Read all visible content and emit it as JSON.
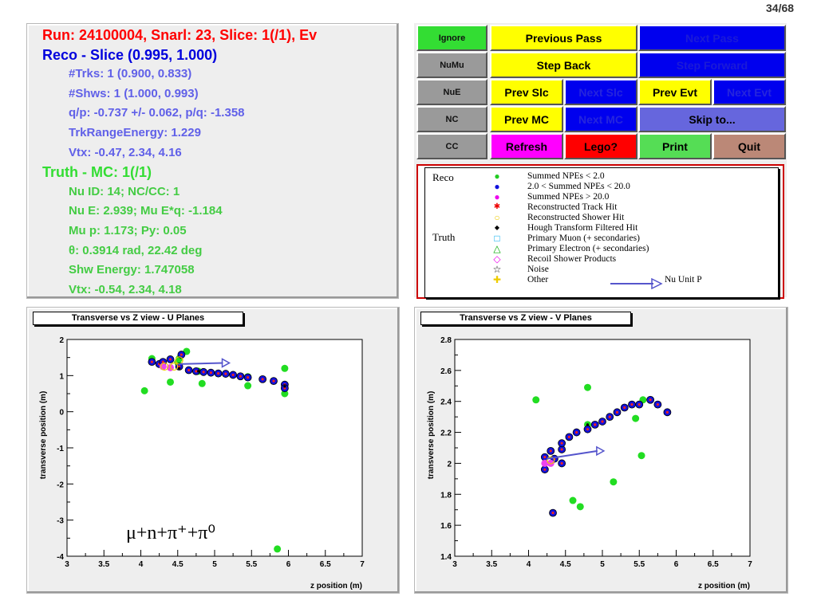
{
  "page": {
    "counter": "34/68"
  },
  "info": {
    "run_line": "Run: 24100004, Snarl: 23, Slice: 1(/1), Ev",
    "reco_title": "Reco - Slice (0.995, 1.000)",
    "reco_lines": [
      "#Trks: 1 (0.900, 0.833)",
      "#Shws: 1 (1.000, 0.993)",
      "q/p: -0.737 +/- 0.062,  p/q: -1.358",
      "TrkRangeEnergy: 1.229",
      "Vtx: -0.47, 2.34, 4.16"
    ],
    "truth_title": "Truth - MC: 1(/1)",
    "truth_lines": [
      "Nu ID: 14;  NC/CC: 1",
      "Nu E: 2.939;  Mu E*q: -1.184",
      "Mu p: 1.173;  Py: 0.05",
      "θ: 0.3914 rad, 22.42 deg",
      "Shw Energy: 1.747058",
      "Vtx: -0.54, 2.34, 4.18"
    ]
  },
  "buttons": {
    "ignore": "Ignore",
    "numu": "NuMu",
    "nue": "NuE",
    "nc": "NC",
    "cc": "CC",
    "previous_pass": "Previous Pass",
    "next_pass": "Next Pass",
    "step_back": "Step Back",
    "step_forward": "Step Forward",
    "prev_slc": "Prev Slc",
    "next_slc": "Next Slc",
    "prev_evt": "Prev Evt",
    "next_evt": "Next Evt",
    "prev_mc": "Prev MC",
    "next_mc": "Next MC",
    "skip_to": "Skip to...",
    "refresh": "Refresh",
    "lego": "Lego?",
    "print": "Print",
    "quit": "Quit"
  },
  "colors": {
    "green": "#33dd33",
    "yellow": "#ffff00",
    "blue": "#0000ee",
    "red": "#ff0000",
    "magenta": "#ff00ff",
    "periwinkle": "#6666dd",
    "brown": "#bb8877",
    "light_green": "#55dd55",
    "gray": "#9a9a9a"
  },
  "legend": {
    "reco_label": "Reco",
    "truth_label": "Truth",
    "entries": [
      {
        "symbol": "green-dot",
        "label": "Summed NPEs < 2.0"
      },
      {
        "symbol": "blue-dot",
        "label": "2.0 < Summed NPEs < 20.0"
      },
      {
        "symbol": "magenta-dot",
        "label": "Summed NPEs > 20.0"
      },
      {
        "symbol": "red-star",
        "label": "Reconstructed Track Hit"
      },
      {
        "symbol": "yellow-circle",
        "label": "Reconstructed Shower Hit"
      },
      {
        "symbol": "black-dot",
        "label": "Hough Transform Filtered Hit"
      },
      {
        "symbol": "cyan-square",
        "label": "Primary Muon (+ secondaries)"
      },
      {
        "symbol": "green-triangle",
        "label": "Primary Electron (+ secondaries)"
      },
      {
        "symbol": "magenta-diamond",
        "label": "Recoil Shower Products"
      },
      {
        "symbol": "star-outline",
        "label": "Noise"
      },
      {
        "symbol": "yellow-cross",
        "label": "Other"
      }
    ],
    "arrow_label": "Nu Unit P"
  },
  "chart_data": [
    {
      "type": "scatter",
      "title": "Transverse vs Z view - U Planes",
      "xlabel": "z position (m)",
      "ylabel": "transverse position (m)",
      "xlim": [
        3,
        7
      ],
      "ylim": [
        -4,
        2
      ],
      "xticks": [
        "3",
        "3.5",
        "4",
        "4.5",
        "5",
        "5.5",
        "6",
        "6.5",
        "7"
      ],
      "yticks": [
        "-4",
        "-3",
        "-2",
        "-1",
        "0",
        "1",
        "2"
      ],
      "annotation": "μ+n+π⁺+π⁰",
      "series": [
        {
          "style": "green-dot",
          "points": [
            [
              4.05,
              0.58
            ],
            [
              4.15,
              1.47
            ],
            [
              4.4,
              0.82
            ],
            [
              4.52,
              1.47
            ],
            [
              4.62,
              1.67
            ],
            [
              4.83,
              0.78
            ],
            [
              5.45,
              0.97
            ],
            [
              5.45,
              0.72
            ],
            [
              5.95,
              1.2
            ],
            [
              5.95,
              0.5
            ],
            [
              5.85,
              -3.8
            ],
            [
              4.5,
              1.37
            ],
            [
              4.78,
              1.12
            ]
          ]
        },
        {
          "style": "blue-dot",
          "points": [
            [
              4.15,
              1.38
            ],
            [
              4.25,
              1.32
            ],
            [
              4.3,
              1.38
            ],
            [
              4.4,
              1.45
            ],
            [
              4.52,
              1.25
            ],
            [
              4.55,
              1.58
            ],
            [
              4.65,
              1.15
            ],
            [
              4.75,
              1.12
            ],
            [
              4.85,
              1.1
            ],
            [
              4.95,
              1.08
            ],
            [
              5.05,
              1.06
            ],
            [
              5.15,
              1.05
            ],
            [
              5.25,
              1.02
            ],
            [
              5.35,
              0.98
            ],
            [
              5.45,
              0.95
            ],
            [
              5.65,
              0.9
            ],
            [
              5.8,
              0.85
            ],
            [
              5.95,
              0.75
            ],
            [
              5.95,
              0.65
            ]
          ]
        },
        {
          "style": "magenta-dot",
          "points": [
            [
              4.3,
              1.25
            ],
            [
              4.4,
              1.22
            ]
          ]
        },
        {
          "style": "yellow-circle",
          "points": [
            [
              4.32,
              1.25
            ],
            [
              4.45,
              1.25
            ],
            [
              4.52,
              1.42
            ]
          ]
        },
        {
          "style": "black-dot",
          "points": [
            [
              4.52,
              1.2
            ],
            [
              4.78,
              1.12
            ],
            [
              5.95,
              0.7
            ]
          ]
        }
      ],
      "arrow": {
        "from": [
          4.52,
          1.32
        ],
        "to": [
          5.2,
          1.35
        ],
        "label": "Nu Unit P"
      }
    },
    {
      "type": "scatter",
      "title": "Transverse vs Z view - V Planes",
      "xlabel": "z position (m)",
      "ylabel": "transverse position (m)",
      "xlim": [
        3,
        7
      ],
      "ylim": [
        1.4,
        2.8
      ],
      "xticks": [
        "3",
        "3.5",
        "4",
        "4.5",
        "5",
        "5.5",
        "6",
        "6.5",
        "7"
      ],
      "yticks": [
        "1.4",
        "1.6",
        "1.8",
        "2",
        "2.2",
        "2.4",
        "2.6",
        "2.8"
      ],
      "series": [
        {
          "style": "green-dot",
          "points": [
            [
              4.1,
              2.41
            ],
            [
              4.8,
              2.49
            ],
            [
              5.15,
              1.88
            ],
            [
              5.53,
              2.05
            ],
            [
              4.6,
              1.76
            ],
            [
              4.7,
              1.72
            ],
            [
              5.45,
              2.29
            ],
            [
              5.55,
              2.41
            ],
            [
              4.8,
              2.25
            ]
          ]
        },
        {
          "style": "blue-dot",
          "points": [
            [
              4.22,
              1.96
            ],
            [
              4.22,
              2.04
            ],
            [
              4.3,
              2.08
            ],
            [
              4.35,
              2.03
            ],
            [
              4.45,
              2.09
            ],
            [
              4.45,
              2.13
            ],
            [
              4.55,
              2.17
            ],
            [
              4.65,
              2.2
            ],
            [
              4.8,
              2.22
            ],
            [
              4.9,
              2.25
            ],
            [
              5.0,
              2.27
            ],
            [
              5.1,
              2.3
            ],
            [
              5.2,
              2.33
            ],
            [
              5.3,
              2.36
            ],
            [
              5.4,
              2.38
            ],
            [
              5.5,
              2.38
            ],
            [
              5.65,
              2.41
            ],
            [
              5.75,
              2.38
            ],
            [
              5.88,
              2.33
            ],
            [
              4.33,
              1.68
            ],
            [
              4.45,
              2.0
            ]
          ]
        },
        {
          "style": "magenta-dot",
          "points": [
            [
              4.22,
              2.0
            ],
            [
              4.3,
              2.0
            ]
          ]
        },
        {
          "style": "yellow-circle",
          "points": [
            [
              4.3,
              2.02
            ]
          ]
        },
        {
          "style": "black-dot",
          "points": [
            [
              4.8,
              2.25
            ]
          ]
        }
      ],
      "arrow": {
        "from": [
          4.25,
          2.03
        ],
        "to": [
          5.02,
          2.08
        ],
        "label": "Nu Unit P"
      }
    }
  ]
}
